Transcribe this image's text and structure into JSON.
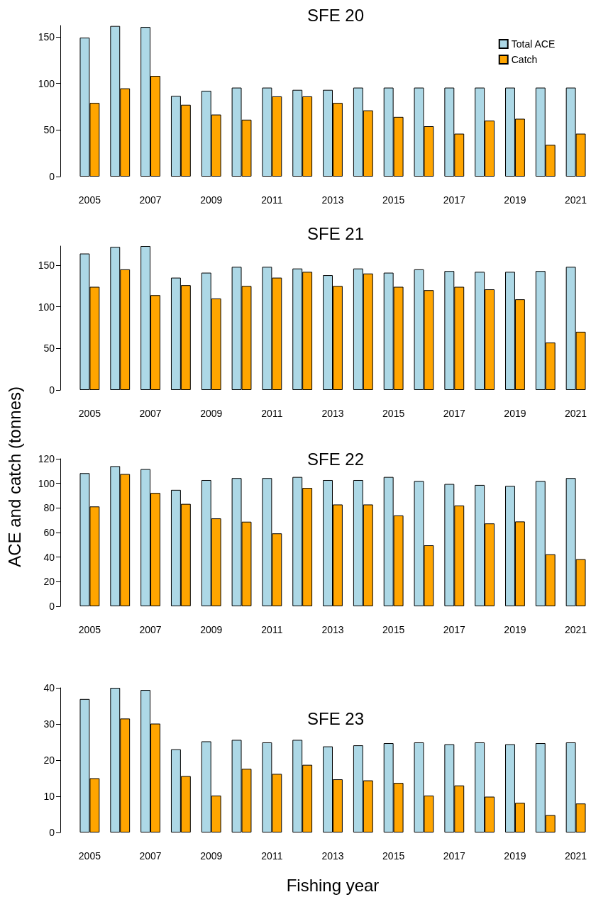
{
  "chart_data": [
    {
      "type": "bar",
      "title": "SFE 20",
      "categories": [
        "2005",
        null,
        "2007",
        null,
        "2009",
        null,
        "2011",
        null,
        "2013",
        null,
        "2015",
        null,
        "2017",
        null,
        "2019",
        null,
        "2021"
      ],
      "legend": "top right",
      "ylim": [
        0,
        162
      ],
      "yticks": [
        0,
        50,
        100,
        150
      ],
      "series": [
        {
          "name": "Total ACE",
          "color": "#add8e6",
          "values": [
            149,
            161.5,
            160.4,
            86.5,
            92,
            95.4,
            95.4,
            93,
            93,
            95.4,
            95.4,
            95.4,
            95.4,
            95.4,
            95.4,
            95.4,
            95.4
          ]
        },
        {
          "name": "Catch",
          "color": "#ffa500",
          "values": [
            79,
            94.6,
            108,
            77,
            66.5,
            61,
            86,
            86,
            79,
            71,
            64,
            54,
            46,
            60,
            62,
            34,
            46
          ]
        }
      ]
    },
    {
      "type": "bar",
      "title": "SFE 21",
      "categories": [
        "2005",
        null,
        "2007",
        null,
        "2009",
        null,
        "2011",
        null,
        "2013",
        null,
        "2015",
        null,
        "2017",
        null,
        "2019",
        null,
        "2021"
      ],
      "ylim": [
        0,
        173
      ],
      "yticks": [
        0,
        50,
        100,
        150
      ],
      "series": [
        {
          "color": "#add8e6",
          "values": [
            164,
            172,
            173,
            135,
            141,
            148,
            148,
            146,
            138,
            146,
            141,
            145,
            143,
            142,
            142,
            143,
            148
          ]
        },
        {
          "color": "#ffa500",
          "values": [
            124,
            145,
            114,
            126,
            110,
            125,
            135,
            142,
            125,
            140,
            124,
            120,
            124,
            121,
            109,
            57,
            70
          ]
        }
      ]
    },
    {
      "type": "bar",
      "title": "SFE 22",
      "ylabel": "ACE and catch (tonnes)",
      "categories": [
        "2005",
        null,
        "2007",
        null,
        "2009",
        null,
        "2011",
        null,
        "2013",
        null,
        "2015",
        null,
        "2017",
        null,
        "2019",
        null,
        "2021"
      ],
      "ylim": [
        0,
        120
      ],
      "yticks": [
        0,
        20,
        40,
        60,
        80,
        100,
        120
      ],
      "series": [
        {
          "color": "#add8e6",
          "values": [
            108.3,
            114,
            111.6,
            94.7,
            102.7,
            104.3,
            104.3,
            105.2,
            102.7,
            102.7,
            105.2,
            101.9,
            99.5,
            98.7,
            97.9,
            101.9,
            104.3
          ]
        },
        {
          "color": "#ffa500",
          "values": [
            81.2,
            107.6,
            92.2,
            83.3,
            71.5,
            68.8,
            59.3,
            96.3,
            82.8,
            82.8,
            73.9,
            49.6,
            82,
            67.4,
            69,
            42.3,
            38.3
          ]
        }
      ]
    },
    {
      "type": "bar",
      "title": "SFE 23",
      "xlabel": "Fishing year",
      "categories": [
        "2005",
        null,
        "2007",
        null,
        "2009",
        null,
        "2011",
        null,
        "2013",
        null,
        "2015",
        null,
        "2017",
        null,
        "2019",
        null,
        "2021"
      ],
      "ylim": [
        0,
        40
      ],
      "yticks": [
        0,
        10,
        20,
        30,
        40
      ],
      "series": [
        {
          "color": "#add8e6",
          "values": [
            36.9,
            40,
            39.4,
            23,
            25.2,
            25.6,
            24.9,
            25.6,
            23.8,
            24.1,
            24.7,
            24.9,
            24.4,
            24.9,
            24.4,
            24.7,
            24.9
          ]
        },
        {
          "color": "#ffa500",
          "values": [
            15,
            31.5,
            30.1,
            15.6,
            10.2,
            17.6,
            16.2,
            18.7,
            14.7,
            14.4,
            13.7,
            10.2,
            13,
            9.9,
            8.2,
            4.8,
            8
          ]
        }
      ]
    }
  ]
}
